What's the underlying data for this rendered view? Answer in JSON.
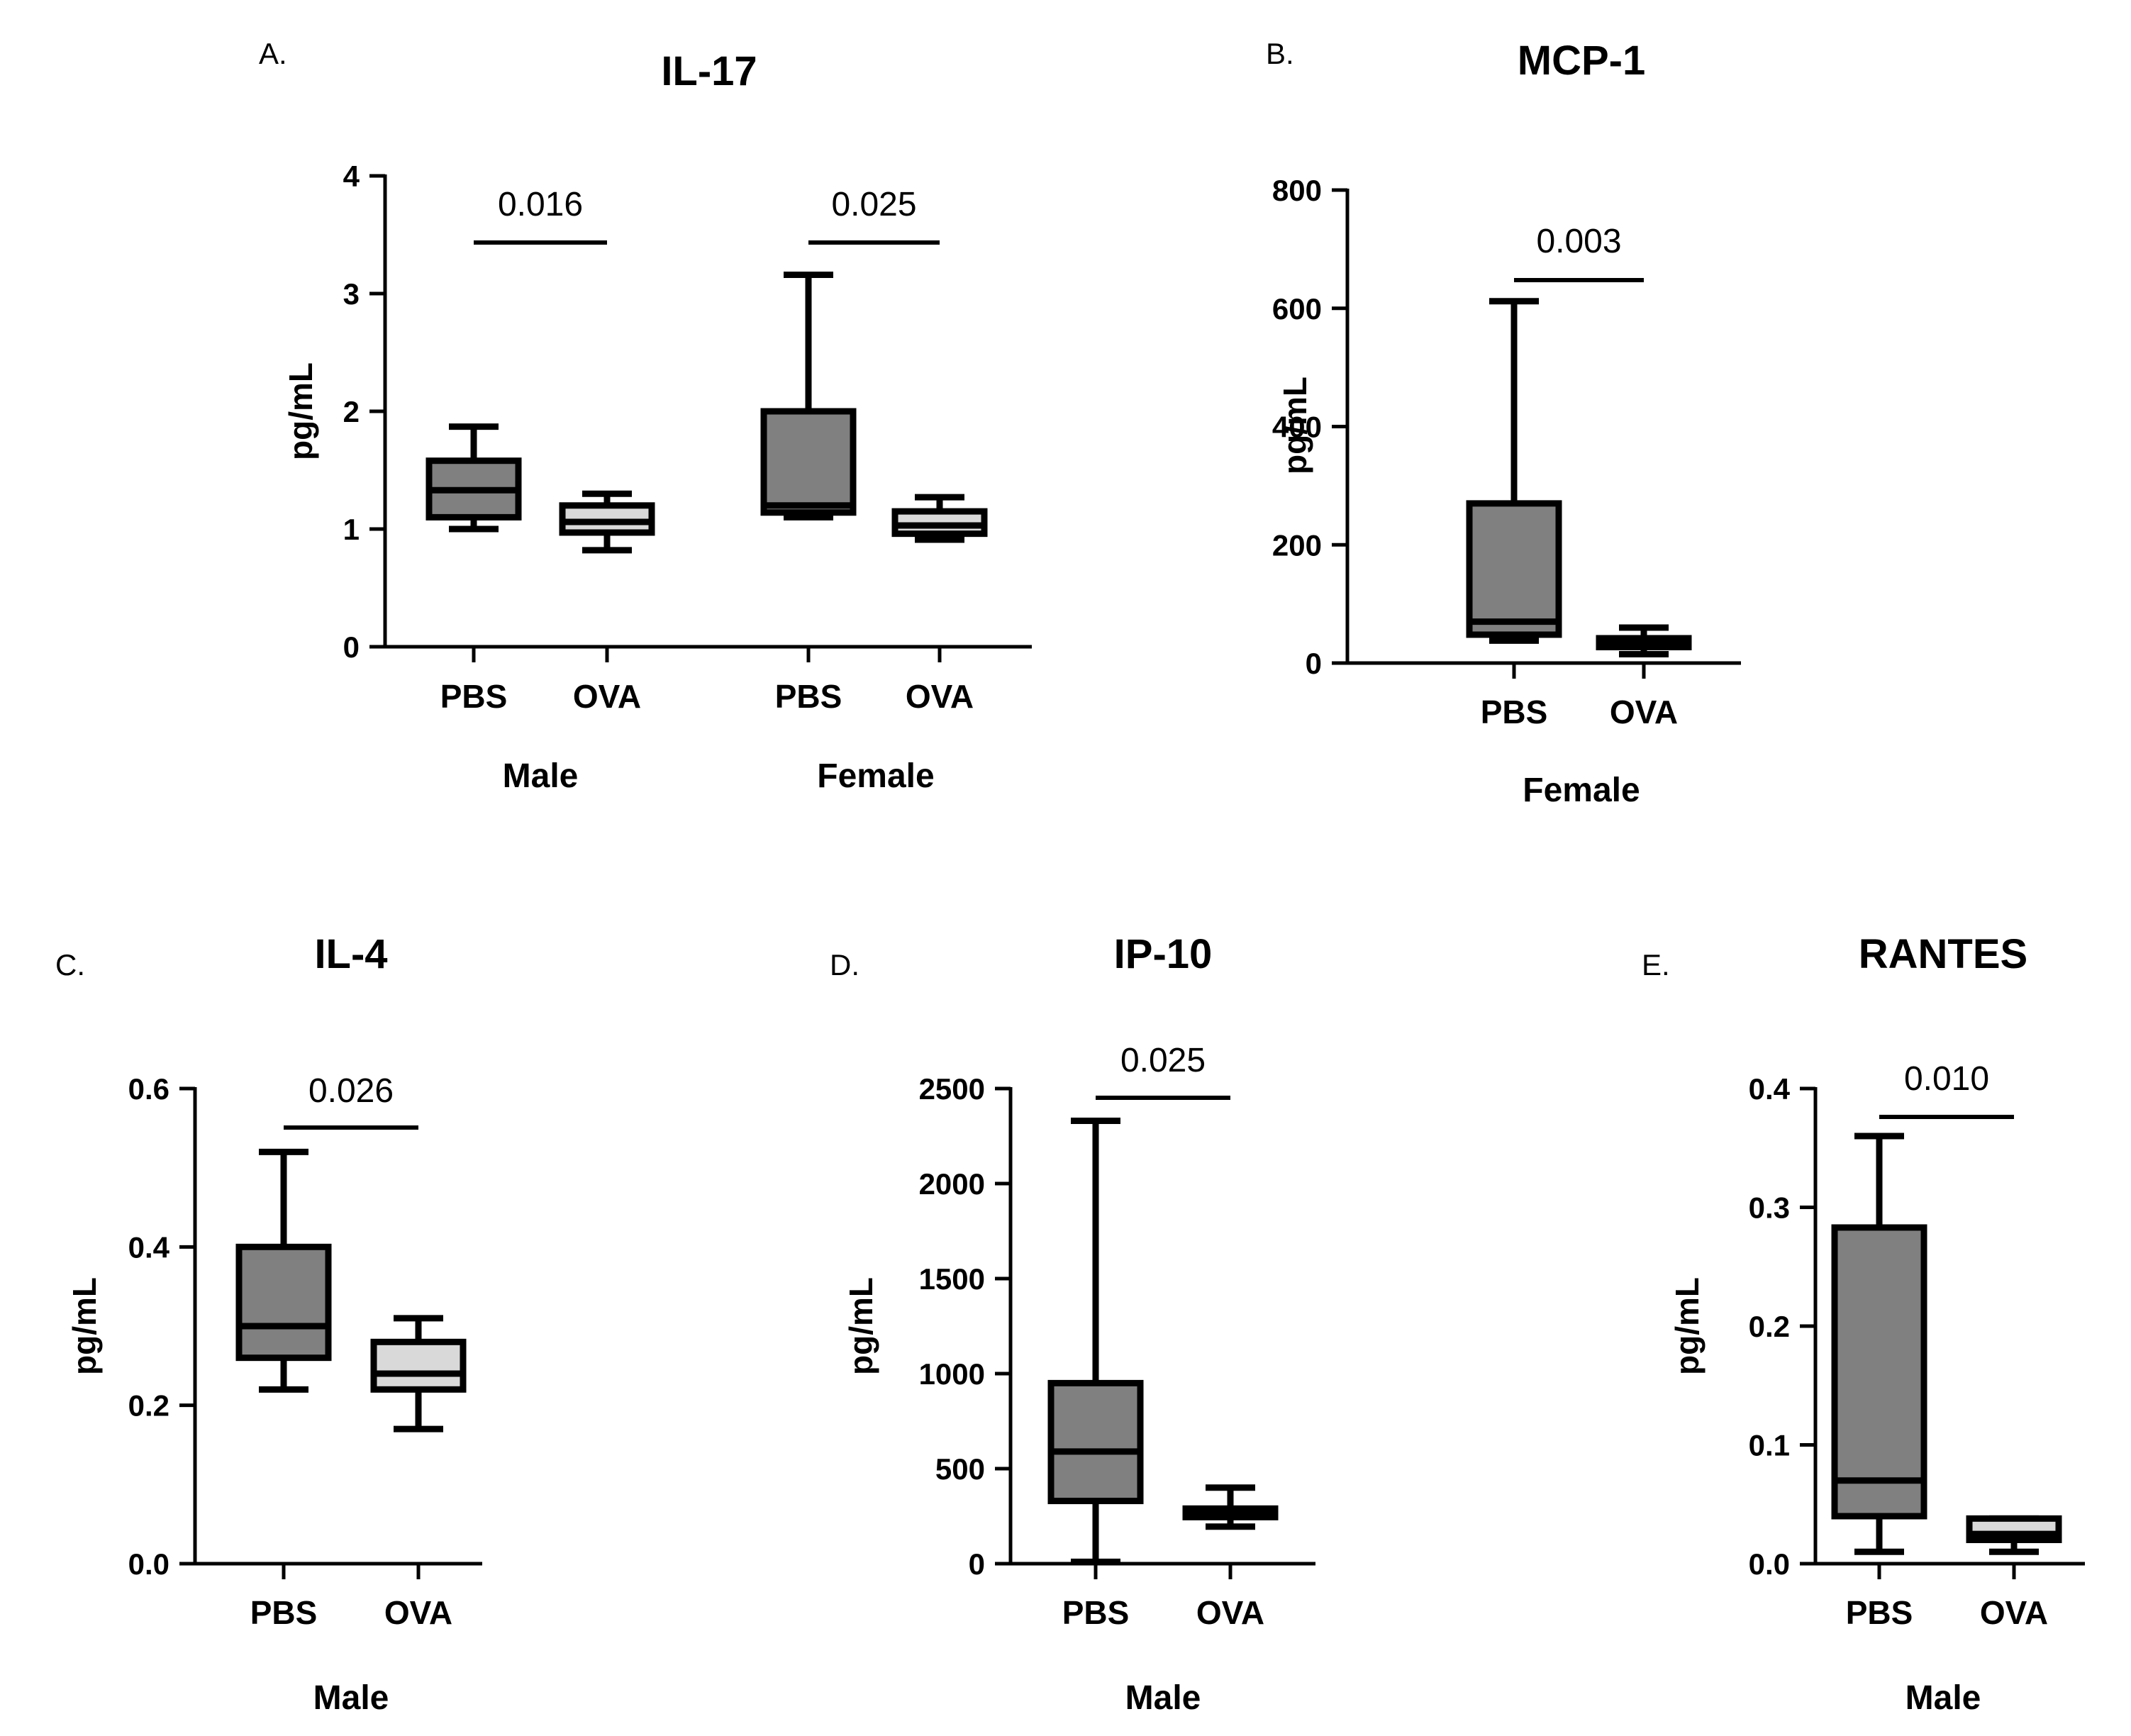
{
  "chart_data": [
    {
      "type": "box",
      "panel_letter": "A.",
      "title": "IL-17",
      "ylabel": "pg/mL",
      "ylim": [
        0,
        4
      ],
      "yticks": [
        "0",
        "1",
        "2",
        "3",
        "4"
      ],
      "groups": [
        {
          "name": "Male",
          "categories": [
            "PBS",
            "OVA"
          ],
          "pvalue": "0.016"
        },
        {
          "name": "Female",
          "categories": [
            "PBS",
            "OVA"
          ],
          "pvalue": "0.025"
        }
      ],
      "boxes": [
        {
          "group": "Male",
          "category": "PBS",
          "min": 1.0,
          "q1": 1.1,
          "median": 1.33,
          "q3": 1.58,
          "max": 1.87,
          "fill": "#808080"
        },
        {
          "group": "Male",
          "category": "OVA",
          "min": 0.82,
          "q1": 0.97,
          "median": 1.06,
          "q3": 1.2,
          "max": 1.3,
          "fill": "#d9d9d9"
        },
        {
          "group": "Female",
          "category": "PBS",
          "min": 1.1,
          "q1": 1.14,
          "median": 1.2,
          "q3": 2.0,
          "max": 3.16,
          "fill": "#808080"
        },
        {
          "group": "Female",
          "category": "OVA",
          "min": 0.91,
          "q1": 0.96,
          "median": 1.03,
          "q3": 1.15,
          "max": 1.27,
          "fill": "#d9d9d9"
        }
      ]
    },
    {
      "type": "box",
      "panel_letter": "B.",
      "title": "MCP-1",
      "ylabel": "pg/mL",
      "ylim": [
        0,
        800
      ],
      "yticks": [
        "0",
        "200",
        "400",
        "600",
        "800"
      ],
      "groups": [
        {
          "name": "Female",
          "categories": [
            "PBS",
            "OVA"
          ],
          "pvalue": "0.003"
        }
      ],
      "boxes": [
        {
          "group": "Female",
          "category": "PBS",
          "min": 38,
          "q1": 48,
          "median": 70,
          "q3": 270,
          "max": 612,
          "fill": "#808080"
        },
        {
          "group": "Female",
          "category": "OVA",
          "min": 15,
          "q1": 27,
          "median": 35,
          "q3": 42,
          "max": 60,
          "fill": "#d9d9d9"
        }
      ]
    },
    {
      "type": "box",
      "panel_letter": "C.",
      "title": "IL-4",
      "ylabel": "pg/mL",
      "ylim": [
        0,
        0.6
      ],
      "yticks": [
        "0.0",
        "0.2",
        "0.4",
        "0.6"
      ],
      "groups": [
        {
          "name": "Male",
          "categories": [
            "PBS",
            "OVA"
          ],
          "pvalue": "0.026"
        }
      ],
      "boxes": [
        {
          "group": "Male",
          "category": "PBS",
          "min": 0.22,
          "q1": 0.26,
          "median": 0.3,
          "q3": 0.4,
          "max": 0.52,
          "fill": "#808080"
        },
        {
          "group": "Male",
          "category": "OVA",
          "min": 0.17,
          "q1": 0.22,
          "median": 0.24,
          "q3": 0.28,
          "max": 0.31,
          "fill": "#d9d9d9"
        }
      ]
    },
    {
      "type": "box",
      "panel_letter": "D.",
      "title": "IP-10",
      "ylabel": "pg/mL",
      "ylim": [
        0,
        2500
      ],
      "yticks": [
        "0",
        "500",
        "1000",
        "1500",
        "2000",
        "2500"
      ],
      "groups": [
        {
          "name": "Male",
          "categories": [
            "PBS",
            "OVA"
          ],
          "pvalue": "0.025"
        }
      ],
      "boxes": [
        {
          "group": "Male",
          "category": "PBS",
          "min": 10,
          "q1": 330,
          "median": 590,
          "q3": 950,
          "max": 2330,
          "fill": "#808080"
        },
        {
          "group": "Male",
          "category": "OVA",
          "min": 195,
          "q1": 245,
          "median": 270,
          "q3": 290,
          "max": 400,
          "fill": "#d9d9d9"
        }
      ]
    },
    {
      "type": "box",
      "panel_letter": "E.",
      "title": "RANTES",
      "ylabel": "pg/mL",
      "ylim": [
        0,
        0.4
      ],
      "yticks": [
        "0.0",
        "0.1",
        "0.2",
        "0.3",
        "0.4"
      ],
      "groups": [
        {
          "name": "Male",
          "categories": [
            "PBS",
            "OVA"
          ],
          "pvalue": "0.010"
        }
      ],
      "boxes": [
        {
          "group": "Male",
          "category": "PBS",
          "min": 0.01,
          "q1": 0.04,
          "median": 0.07,
          "q3": 0.283,
          "max": 0.36,
          "fill": "#808080"
        },
        {
          "group": "Male",
          "category": "OVA",
          "min": 0.01,
          "q1": 0.02,
          "median": 0.025,
          "q3": 0.038,
          "max": 0.038,
          "fill": "#d9d9d9"
        }
      ]
    }
  ]
}
